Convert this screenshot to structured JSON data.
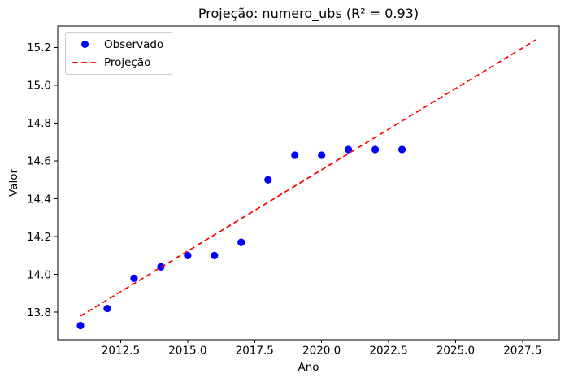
{
  "figure": {
    "title": "Projeção: numero_ubs (R² = 0.93)",
    "xlabel": "Ano",
    "ylabel": "Valor"
  },
  "legend": {
    "position": "upper-left",
    "items": [
      {
        "label": "Observado",
        "marker": "dot",
        "color": "#0000ff"
      },
      {
        "label": "Projeção",
        "marker": "dashed-line",
        "color": "#ff0000"
      }
    ]
  },
  "colors": {
    "observado_points": "#0000ff",
    "projecao_line": "#ff0000",
    "axes": "#000000",
    "legend_border": "#cccccc",
    "background": "#ffffff"
  },
  "chart_data": {
    "type": "scatter",
    "title": "Projeção: numero_ubs (R² = 0.93)",
    "xlabel": "Ano",
    "ylabel": "Valor",
    "r_squared": 0.93,
    "grid": false,
    "legend_position": "upper-left",
    "xlim": [
      2010.15,
      2028.87
    ],
    "ylim": [
      13.655,
      15.313
    ],
    "xticks": [
      2012.5,
      2015.0,
      2017.5,
      2020.0,
      2022.5,
      2025.0,
      2027.5
    ],
    "yticks": [
      13.8,
      14.0,
      14.2,
      14.4,
      14.6,
      14.8,
      15.0,
      15.2
    ],
    "series": [
      {
        "name": "Observado",
        "type": "scatter",
        "color": "#0000ff",
        "x": [
          2011,
          2012,
          2013,
          2014,
          2015,
          2016,
          2017,
          2018,
          2019,
          2020,
          2021,
          2022,
          2023
        ],
        "y": [
          13.73,
          13.82,
          13.98,
          14.04,
          14.1,
          14.1,
          14.17,
          14.5,
          14.63,
          14.63,
          14.66,
          14.66,
          14.66
        ]
      },
      {
        "name": "Projeção",
        "type": "line",
        "style": "dashed",
        "color": "#ff0000",
        "x": [
          2011,
          2028
        ],
        "y": [
          13.78,
          15.24
        ]
      }
    ]
  }
}
